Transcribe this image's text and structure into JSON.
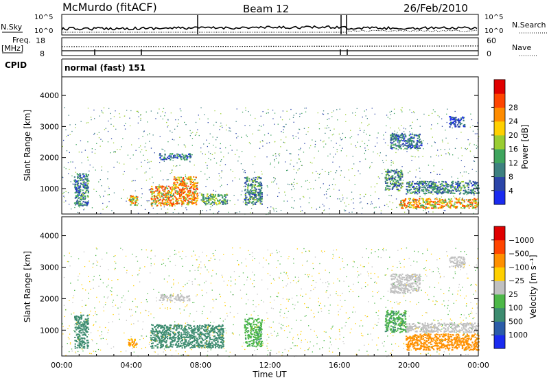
{
  "header": {
    "station": "McMurdo (fitACF)",
    "beam": "Beam 12",
    "date": "26/Feb/2010"
  },
  "chart_data": [
    {
      "type": "line",
      "panel": "noise",
      "left_label": "N.Sky",
      "right_label": "N.Search",
      "left_ticks": [
        "10^5",
        "10^0"
      ],
      "right_ticks": [
        "10^5",
        "10^0"
      ],
      "series": [
        {
          "name": "N.Sky",
          "style": "solid"
        },
        {
          "name": "N.Search",
          "style": "dotted"
        }
      ]
    },
    {
      "type": "line",
      "panel": "frequency",
      "left_label_line1": "Freq.",
      "left_label_line2": "[MHz]",
      "right_label": "Nave",
      "left_ticks": [
        "18",
        "8"
      ],
      "right_ticks": [
        "60",
        "0"
      ],
      "series": [
        {
          "name": "Freq.",
          "style": "solid"
        },
        {
          "name": "Nave",
          "style": "dotted"
        }
      ]
    },
    {
      "type": "table",
      "panel": "cpid",
      "label": "CPID",
      "value": "normal (fast) 151"
    },
    {
      "type": "heatmap",
      "panel": "power",
      "ylabel": "Slant Range [km]",
      "yticks": [
        1000,
        2000,
        3000,
        4000
      ],
      "ylim": [
        180,
        4600
      ],
      "xlim": [
        0,
        24
      ],
      "colorbar": {
        "label": "Power [dB]",
        "ticks": [
          "4",
          "8",
          "12",
          "16",
          "20",
          "24",
          "28"
        ],
        "colors": [
          "#1a2bf0",
          "#2b45a8",
          "#3d8080",
          "#3fa55e",
          "#9acd32",
          "#ffd000",
          "#ff8c00",
          "#ff4500",
          "#e00000"
        ]
      },
      "regions": [
        {
          "t": [
            0.7,
            1.5
          ],
          "r": [
            450,
            1500
          ],
          "value": 10
        },
        {
          "t": [
            3.8,
            4.4
          ],
          "r": [
            480,
            800
          ],
          "value": 22
        },
        {
          "t": [
            5.1,
            6.4
          ],
          "r": [
            450,
            1100
          ],
          "value": 24
        },
        {
          "t": [
            6.4,
            7.8
          ],
          "r": [
            500,
            1400
          ],
          "value": 27
        },
        {
          "t": [
            8.0,
            9.5
          ],
          "r": [
            500,
            850
          ],
          "value": 14
        },
        {
          "t": [
            5.6,
            7.4
          ],
          "r": [
            1950,
            2150
          ],
          "value": 9
        },
        {
          "t": [
            10.5,
            11.5
          ],
          "r": [
            500,
            1400
          ],
          "value": 11
        },
        {
          "t": [
            18.6,
            19.6
          ],
          "r": [
            950,
            1650
          ],
          "value": 12
        },
        {
          "t": [
            19.4,
            24.0
          ],
          "r": [
            380,
            700
          ],
          "value": 24
        },
        {
          "t": [
            19.8,
            24.0
          ],
          "r": [
            850,
            1250
          ],
          "value": 10
        },
        {
          "t": [
            18.9,
            20.7
          ],
          "r": [
            2300,
            2800
          ],
          "value": 9
        },
        {
          "t": [
            22.3,
            23.2
          ],
          "r": [
            3000,
            3350
          ],
          "value": 6
        }
      ]
    },
    {
      "type": "heatmap",
      "panel": "velocity",
      "ylabel": "Slant Range [km]",
      "xlabel": "Time UT",
      "xticks": [
        "00:00",
        "04:00",
        "08:00",
        "12:00",
        "16:00",
        "20:00",
        "00:00"
      ],
      "yticks": [
        1000,
        2000,
        3000,
        4000
      ],
      "ylim": [
        180,
        4600
      ],
      "xlim": [
        0,
        24
      ],
      "colorbar": {
        "label": "Velocity [m s⁻¹]",
        "ticks": [
          "1000",
          "500",
          "100",
          "25",
          "−25",
          "−100",
          "−500",
          "−1000"
        ],
        "colors": [
          "#1a2bf0",
          "#2b5ca8",
          "#3d8c70",
          "#4db848",
          "#c0c0c0",
          "#ffd000",
          "#ff9000",
          "#ff4500",
          "#e00000"
        ]
      },
      "regions": [
        {
          "t": [
            0.7,
            1.5
          ],
          "r": [
            450,
            1500
          ],
          "value": 200
        },
        {
          "t": [
            3.8,
            4.3
          ],
          "r": [
            480,
            800
          ],
          "value": -120
        },
        {
          "t": [
            5.1,
            9.3
          ],
          "r": [
            450,
            1200
          ],
          "value": 150
        },
        {
          "t": [
            5.6,
            7.4
          ],
          "r": [
            1950,
            2150
          ],
          "value": 5
        },
        {
          "t": [
            10.5,
            11.5
          ],
          "r": [
            500,
            1400
          ],
          "value": 80
        },
        {
          "t": [
            18.6,
            19.8
          ],
          "r": [
            950,
            1650
          ],
          "value": 90
        },
        {
          "t": [
            19.8,
            24.0
          ],
          "r": [
            380,
            900
          ],
          "value": -200
        },
        {
          "t": [
            19.8,
            24.0
          ],
          "r": [
            950,
            1250
          ],
          "value": 10
        },
        {
          "t": [
            18.9,
            20.6
          ],
          "r": [
            2200,
            2800
          ],
          "value": 10
        },
        {
          "t": [
            22.3,
            23.2
          ],
          "r": [
            3000,
            3350
          ],
          "value": 10
        }
      ]
    }
  ]
}
